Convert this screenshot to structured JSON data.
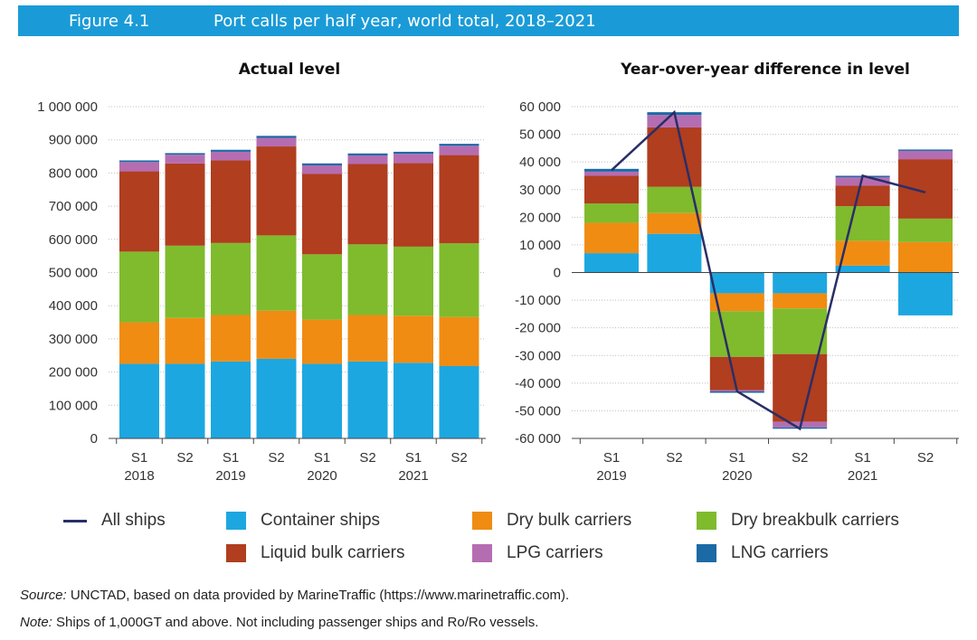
{
  "header": {
    "figure_label": "Figure 4.1",
    "title": "Port calls per half year, world total, 2018–2021"
  },
  "colors": {
    "container": "#1da7e0",
    "dry_bulk": "#f08c12",
    "dry_breakbulk": "#7fbb2d",
    "liquid_bulk": "#b03e1f",
    "lpg": "#b56db1",
    "lng": "#1b6aa5",
    "all_ships": "#2a2e66"
  },
  "chart_data": [
    {
      "type": "bar",
      "stacked": true,
      "title": "Actual level",
      "categories": [
        "S1",
        "S2",
        "S1",
        "S2",
        "S1",
        "S2",
        "S1",
        "S2"
      ],
      "year_labels": [
        "2018",
        "2019",
        "2020",
        "2021"
      ],
      "ylim": [
        0,
        1000000
      ],
      "yticks": [
        "0",
        "100 000",
        "200 000",
        "300 000",
        "400 000",
        "500 000",
        "600 000",
        "700 000",
        "800 000",
        "900 000",
        "1 000 000"
      ],
      "grid": true,
      "series": [
        {
          "name": "Container ships",
          "key": "container",
          "values": [
            225000,
            225000,
            232000,
            240000,
            225000,
            232000,
            228000,
            218000
          ]
        },
        {
          "name": "Dry bulk carriers",
          "key": "dry_bulk",
          "values": [
            125000,
            138000,
            140000,
            145000,
            133000,
            140000,
            142000,
            148000
          ]
        },
        {
          "name": "Dry breakbulk carriers",
          "key": "dry_breakbulk",
          "values": [
            213000,
            218000,
            217000,
            227000,
            197000,
            213000,
            208000,
            222000
          ]
        },
        {
          "name": "Liquid bulk carriers",
          "key": "liquid_bulk",
          "values": [
            242000,
            248000,
            249000,
            268000,
            242000,
            242000,
            252000,
            266000
          ]
        },
        {
          "name": "LPG carriers",
          "key": "lpg",
          "values": [
            28000,
            26000,
            26000,
            26000,
            26000,
            26000,
            28000,
            28000
          ]
        },
        {
          "name": "LNG carriers",
          "key": "lng",
          "values": [
            5000,
            5000,
            6000,
            6000,
            6000,
            6000,
            6000,
            6000
          ]
        }
      ]
    },
    {
      "type": "bar",
      "stacked": true,
      "title": "Year-over-year difference in level",
      "categories": [
        "S1",
        "S2",
        "S1",
        "S2",
        "S1",
        "S2"
      ],
      "year_labels": [
        "2019",
        "2020",
        "2021"
      ],
      "ylim": [
        -60000,
        60000
      ],
      "yticks": [
        "-60 000",
        "-50 000",
        "-40 000",
        "-30 000",
        "-20 000",
        "-10 000",
        "0",
        "10 000",
        "20 000",
        "30 000",
        "40 000",
        "50 000",
        "60 000"
      ],
      "grid": true,
      "series": [
        {
          "name": "Container ships",
          "key": "container",
          "values": [
            7000,
            14000,
            -7500,
            -7500,
            2500,
            -15500
          ]
        },
        {
          "name": "Dry bulk carriers",
          "key": "dry_bulk",
          "values": [
            11000,
            7500,
            -6500,
            -5500,
            9000,
            11000
          ]
        },
        {
          "name": "Dry breakbulk carriers",
          "key": "dry_breakbulk",
          "values": [
            7000,
            9500,
            -16500,
            -16500,
            12500,
            8500
          ]
        },
        {
          "name": "Liquid bulk carriers",
          "key": "liquid_bulk",
          "values": [
            10000,
            21500,
            -12000,
            -24500,
            7500,
            21500
          ]
        },
        {
          "name": "LPG carriers",
          "key": "lpg",
          "values": [
            1500,
            4500,
            -500,
            -2000,
            3000,
            3000
          ]
        },
        {
          "name": "LNG carriers",
          "key": "lng",
          "values": [
            1000,
            1000,
            -500,
            -500,
            500,
            500
          ]
        }
      ],
      "line": {
        "name": "All ships",
        "values": [
          37000,
          58000,
          -43000,
          -56500,
          35000,
          29000
        ]
      }
    }
  ],
  "legend": [
    {
      "label": "All ships",
      "key": "all_ships",
      "kind": "line"
    },
    {
      "label": "Container ships",
      "key": "container",
      "kind": "box"
    },
    {
      "label": "Dry bulk carriers",
      "key": "dry_bulk",
      "kind": "box"
    },
    {
      "label": "Dry breakbulk carriers",
      "key": "dry_breakbulk",
      "kind": "box"
    },
    {
      "label": "Liquid bulk carriers",
      "key": "liquid_bulk",
      "kind": "box"
    },
    {
      "label": "LPG carriers",
      "key": "lpg",
      "kind": "box"
    },
    {
      "label": "LNG carriers",
      "key": "lng",
      "kind": "box"
    }
  ],
  "footnotes": {
    "source_label": "Source:",
    "source_text": "UNCTAD, based on data provided by MarineTraffic (https://www.marinetraffic.com).",
    "note_label": "Note:",
    "note_text": "Ships of 1,000GT and above. Not including passenger ships and Ro/Ro vessels."
  }
}
